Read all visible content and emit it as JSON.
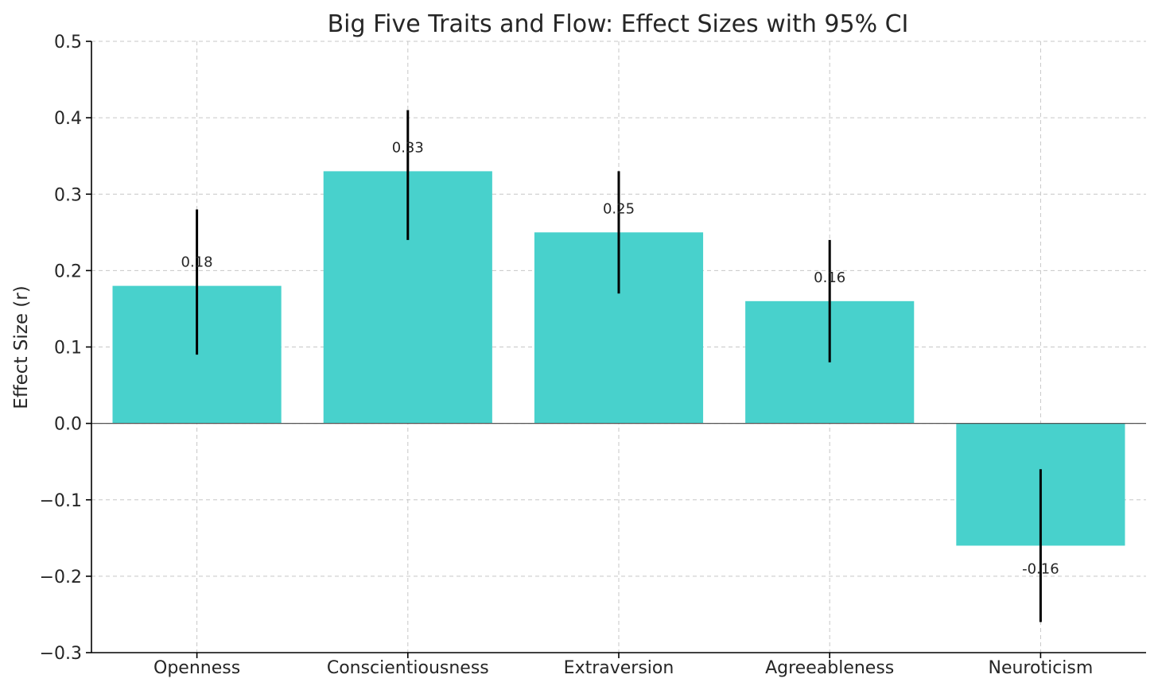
{
  "chart_data": {
    "type": "bar",
    "title": "Big Five Traits and Flow: Effect Sizes with 95% CI",
    "xlabel": "",
    "ylabel": "Effect Size (r)",
    "categories": [
      "Openness",
      "Conscientiousness",
      "Extraversion",
      "Agreeableness",
      "Neuroticism"
    ],
    "values": [
      0.18,
      0.33,
      0.25,
      0.16,
      -0.16
    ],
    "value_labels": [
      "0.18",
      "0.33",
      "0.25",
      "0.16",
      "-0.16"
    ],
    "ci_lower": [
      0.09,
      0.24,
      0.17,
      0.08,
      -0.26
    ],
    "ci_upper": [
      0.28,
      0.41,
      0.33,
      0.24,
      -0.06
    ],
    "ylim": [
      -0.3,
      0.5
    ],
    "yticks": [
      -0.3,
      -0.2,
      -0.1,
      0.0,
      0.1,
      0.2,
      0.3,
      0.4,
      0.5
    ],
    "ytick_labels": [
      "−0.3",
      "−0.2",
      "−0.1",
      "0.0",
      "0.1",
      "0.2",
      "0.3",
      "0.4",
      "0.5"
    ],
    "grid": true,
    "bar_color": "#48d1cc",
    "errorbar_color": "#000000",
    "zero_line_color": "#555555",
    "grid_color": "#c7c7c7"
  }
}
